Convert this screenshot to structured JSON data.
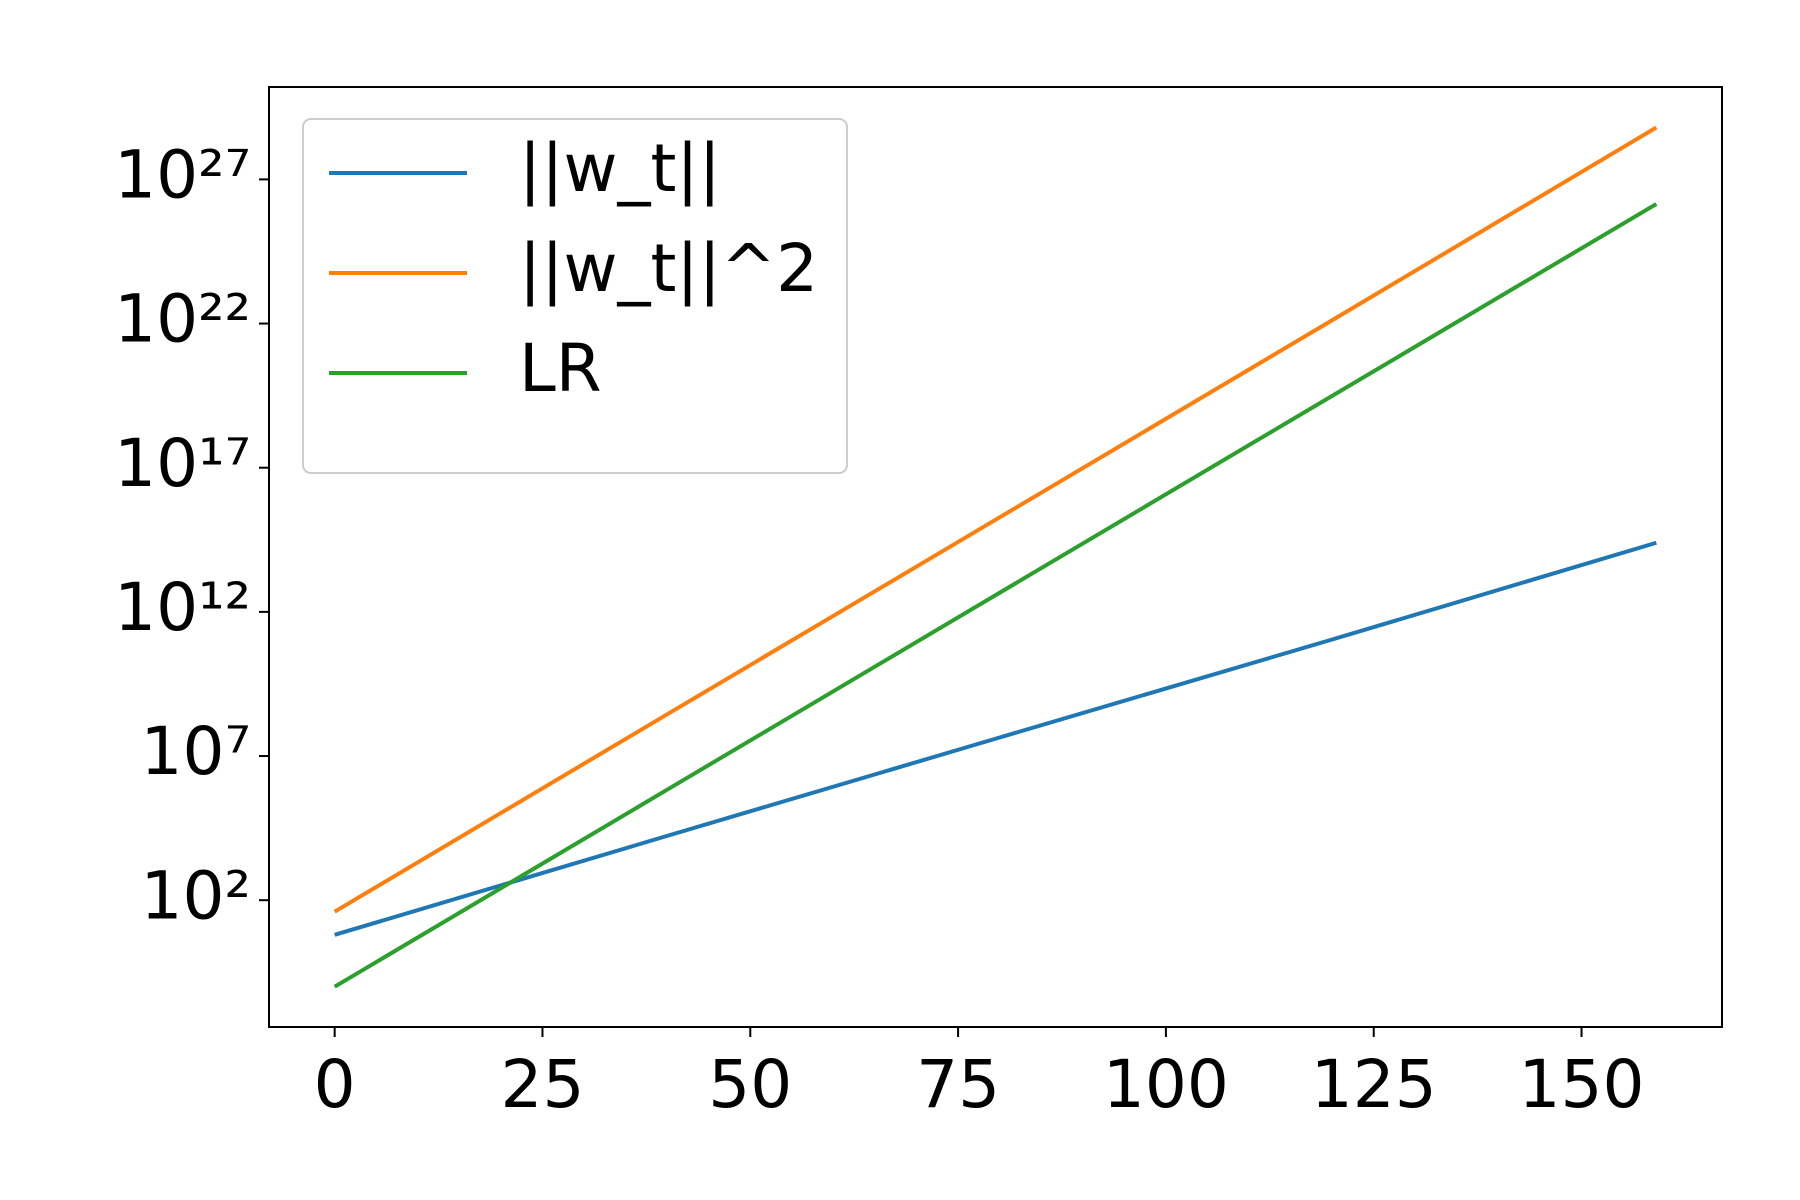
{
  "chart_data": {
    "type": "line",
    "log_y": true,
    "grid": false,
    "legend": "upper left",
    "x": [
      0,
      40,
      80,
      120,
      159
    ],
    "series": [
      {
        "name": "||w_t||",
        "color": "#1f77b4",
        "values": [
          6.3,
          17000,
          44000000,
          110000000000,
          250000000000000
        ]
      },
      {
        "name": "||w_t||^2",
        "color": "#ff7f0e",
        "values": [
          40,
          280000000,
          1900000000000000,
          1.3e+22,
          6.3e+28
        ]
      },
      {
        "name": "LR",
        "color": "#2ca02c",
        "values": [
          0.1,
          680000,
          4600000000000,
          3.1e+19,
          1.4e+26
        ]
      }
    ],
    "xlim": [
      -7.9,
      166.9
    ],
    "xticks": [
      0,
      25,
      50,
      75,
      100,
      125,
      150
    ],
    "ylim": [
      0.004,
      1.6e+30
    ],
    "yticks": [
      {
        "value": 100,
        "label": "10²"
      },
      {
        "value": 10000000,
        "label": "10⁷"
      },
      {
        "value": 1000000000000.0,
        "label": "10¹²"
      },
      {
        "value": 1e+17,
        "label": "10¹⁷"
      },
      {
        "value": 1e+22,
        "label": "10²²"
      },
      {
        "value": 1e+27,
        "label": "10²⁷"
      }
    ]
  }
}
